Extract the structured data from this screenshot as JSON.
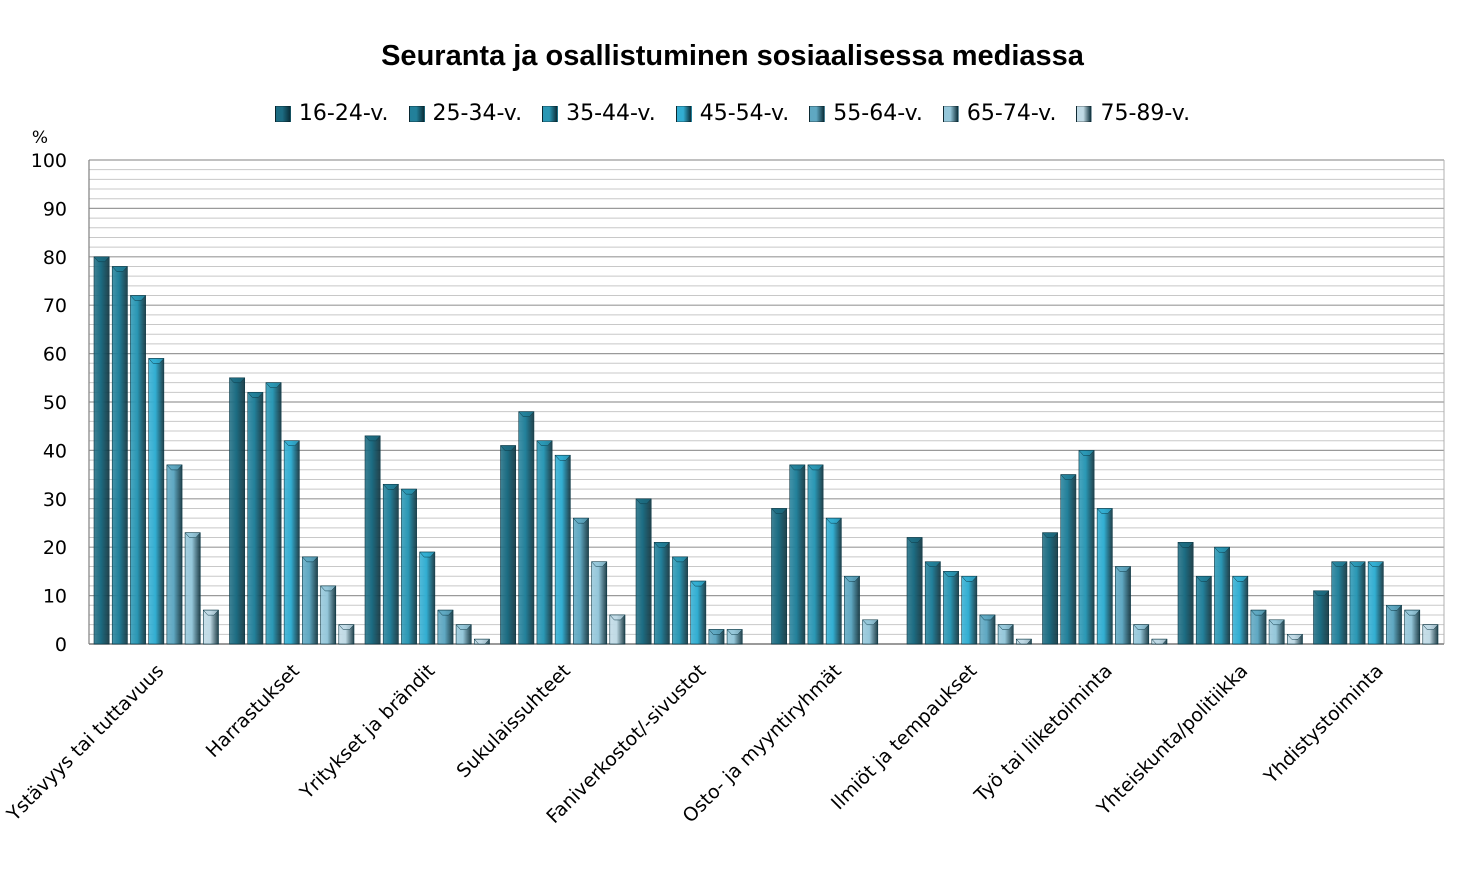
{
  "chart_data": {
    "type": "bar",
    "title": "Seuranta ja osallistuminen sosiaalisessa mediassa",
    "ylabel": "%",
    "xlabel": "",
    "ylim": [
      0,
      100
    ],
    "yticks": [
      0,
      10,
      20,
      30,
      40,
      50,
      60,
      70,
      80,
      90,
      100
    ],
    "grid": true,
    "legend_position": "top",
    "categories": [
      "Ystävyys tai tuttavuus",
      "Harrastukset",
      "Yritykset ja brändit",
      "Sukulaissuhteet",
      "Faniverkostot/-sivustot",
      "Osto- ja myyntiryhmät",
      "Ilmiöt ja tempaukset",
      "Työ tai liiketoiminta",
      "Yhteiskunta/politiikka",
      "Yhdistystoiminta"
    ],
    "series": [
      {
        "name": "16-24-v.",
        "color": "#1c6c82",
        "values": [
          80,
          55,
          43,
          41,
          30,
          28,
          22,
          23,
          21,
          11
        ]
      },
      {
        "name": "25-34-v.",
        "color": "#22809a",
        "values": [
          78,
          52,
          33,
          48,
          21,
          37,
          17,
          35,
          14,
          17
        ]
      },
      {
        "name": "35-44-v.",
        "color": "#2a97b4",
        "values": [
          72,
          54,
          32,
          42,
          18,
          37,
          15,
          40,
          20,
          17
        ]
      },
      {
        "name": "45-54-v.",
        "color": "#32aed2",
        "values": [
          59,
          42,
          19,
          39,
          13,
          26,
          14,
          28,
          14,
          17
        ]
      },
      {
        "name": "55-64-v.",
        "color": "#5fa8c2",
        "values": [
          37,
          18,
          7,
          26,
          3,
          14,
          6,
          16,
          7,
          8
        ]
      },
      {
        "name": "65-74-v.",
        "color": "#95c7da",
        "values": [
          23,
          12,
          4,
          17,
          3,
          5,
          4,
          4,
          5,
          7
        ]
      },
      {
        "name": "75-89-v.",
        "color": "#c0dae5",
        "values": [
          7,
          4,
          1,
          6,
          0,
          0,
          1,
          1,
          2,
          4
        ]
      }
    ]
  }
}
